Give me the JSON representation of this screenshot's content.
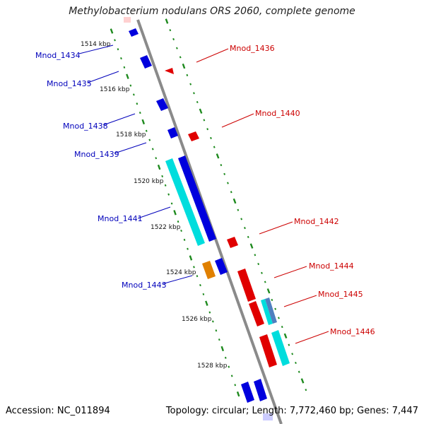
{
  "header": {
    "title": "Methylobacterium nodulans ORS 2060, complete genome"
  },
  "footer": {
    "accession": "Accession: NC_011894",
    "summary": "Topology: circular; Length: 7,772,460 bp; Genes: 7,447"
  },
  "colors": {
    "backbone": "#8a8a8a",
    "ticks": "#1e8a1e",
    "minus_gene": "#0000dd",
    "plus_gene": "#e00000",
    "cds_cyan": "#00dddd",
    "cds_orange": "#e08000",
    "cds_steel": "#4f7fbf"
  },
  "scale_labels": [
    "1514 kbp",
    "1516 kbp",
    "1518 kbp",
    "1520 kbp",
    "1522 kbp",
    "1524 kbp",
    "1526 kbp",
    "1528 kbp"
  ],
  "genes_minus": [
    {
      "label": "Mnod_1434"
    },
    {
      "label": "Mnod_1435"
    },
    {
      "label": "Mnod_1438"
    },
    {
      "label": "Mnod_1439"
    },
    {
      "label": "Mnod_1441"
    },
    {
      "label": "Mnod_1443"
    }
  ],
  "genes_plus": [
    {
      "label": "Mnod_1436"
    },
    {
      "label": "Mnod_1440"
    },
    {
      "label": "Mnod_1442"
    },
    {
      "label": "Mnod_1444"
    },
    {
      "label": "Mnod_1445"
    },
    {
      "label": "Mnod_1446"
    }
  ]
}
